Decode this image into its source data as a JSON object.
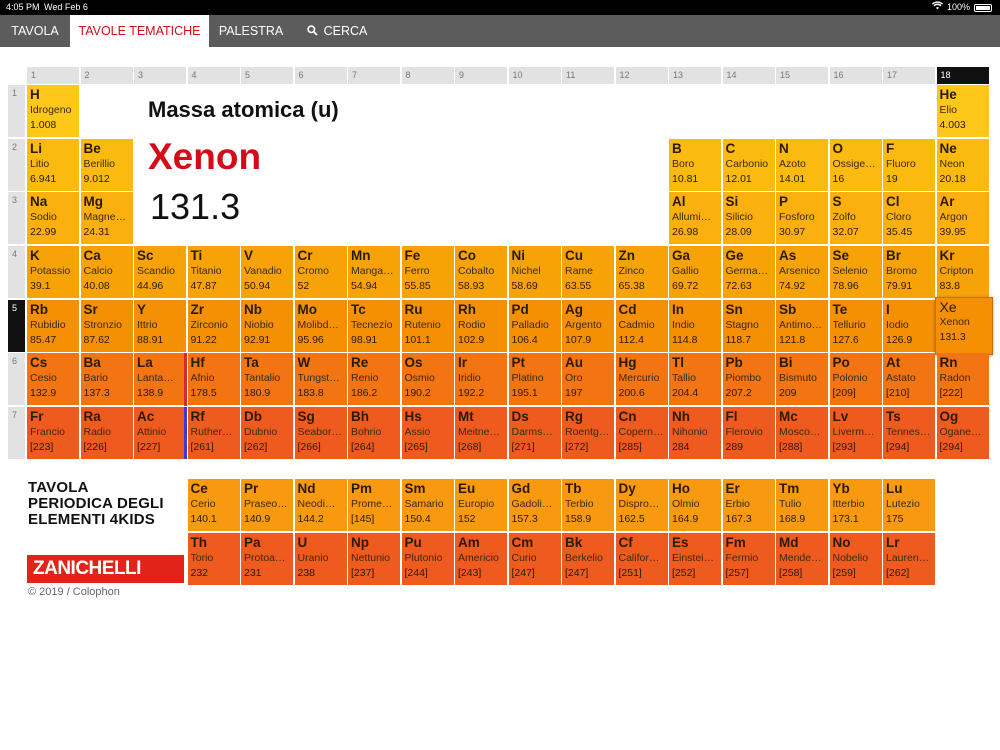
{
  "status_bar": {
    "time": "4:05 PM",
    "date": "Wed Feb 6",
    "battery": "100%"
  },
  "nav": {
    "tabs": [
      {
        "label": "TAVOLA",
        "active": false
      },
      {
        "label": "TAVOLE TEMATICHE",
        "active": true
      },
      {
        "label": "PALESTRA",
        "active": false
      },
      {
        "label": "CERCA",
        "active": false
      }
    ]
  },
  "panel": {
    "label": "Massa atomica (u)",
    "name": "Xenon",
    "value": "131.3"
  },
  "columns": [
    "1",
    "2",
    "3",
    "4",
    "5",
    "6",
    "7",
    "8",
    "9",
    "10",
    "11",
    "12",
    "13",
    "14",
    "15",
    "16",
    "17",
    "18"
  ],
  "selected_column": "18",
  "periods": [
    "1",
    "2",
    "3",
    "4",
    "5",
    "6",
    "7"
  ],
  "selected_period": "5",
  "selected_element": "Xe",
  "elements": [
    {
      "s": "H",
      "n": "Idrogeno",
      "m": "1.008",
      "r": 1,
      "c": 1
    },
    {
      "s": "He",
      "n": "Elio",
      "m": "4.003",
      "r": 1,
      "c": 18
    },
    {
      "s": "Li",
      "n": "Litio",
      "m": "6.941",
      "r": 2,
      "c": 1
    },
    {
      "s": "Be",
      "n": "Berillio",
      "m": "9.012",
      "r": 2,
      "c": 2
    },
    {
      "s": "B",
      "n": "Boro",
      "m": "10.81",
      "r": 2,
      "c": 13
    },
    {
      "s": "C",
      "n": "Carbonio",
      "m": "12.01",
      "r": 2,
      "c": 14
    },
    {
      "s": "N",
      "n": "Azoto",
      "m": "14.01",
      "r": 2,
      "c": 15
    },
    {
      "s": "O",
      "n": "Ossige…",
      "m": "16",
      "r": 2,
      "c": 16
    },
    {
      "s": "F",
      "n": "Fluoro",
      "m": "19",
      "r": 2,
      "c": 17
    },
    {
      "s": "Ne",
      "n": "Neon",
      "m": "20.18",
      "r": 2,
      "c": 18
    },
    {
      "s": "Na",
      "n": "Sodio",
      "m": "22.99",
      "r": 3,
      "c": 1
    },
    {
      "s": "Mg",
      "n": "Magne…",
      "m": "24.31",
      "r": 3,
      "c": 2
    },
    {
      "s": "Al",
      "n": "Allumi…",
      "m": "26.98",
      "r": 3,
      "c": 13
    },
    {
      "s": "Si",
      "n": "Silicio",
      "m": "28.09",
      "r": 3,
      "c": 14
    },
    {
      "s": "P",
      "n": "Fosforo",
      "m": "30.97",
      "r": 3,
      "c": 15
    },
    {
      "s": "S",
      "n": "Zolfo",
      "m": "32.07",
      "r": 3,
      "c": 16
    },
    {
      "s": "Cl",
      "n": "Cloro",
      "m": "35.45",
      "r": 3,
      "c": 17
    },
    {
      "s": "Ar",
      "n": "Argon",
      "m": "39.95",
      "r": 3,
      "c": 18
    },
    {
      "s": "K",
      "n": "Potassio",
      "m": "39.1",
      "r": 4,
      "c": 1
    },
    {
      "s": "Ca",
      "n": "Calcio",
      "m": "40.08",
      "r": 4,
      "c": 2
    },
    {
      "s": "Sc",
      "n": "Scandio",
      "m": "44.96",
      "r": 4,
      "c": 3
    },
    {
      "s": "Ti",
      "n": "Titanio",
      "m": "47.87",
      "r": 4,
      "c": 4
    },
    {
      "s": "V",
      "n": "Vanadio",
      "m": "50.94",
      "r": 4,
      "c": 5
    },
    {
      "s": "Cr",
      "n": "Cromo",
      "m": "52",
      "r": 4,
      "c": 6
    },
    {
      "s": "Mn",
      "n": "Manga…",
      "m": "54.94",
      "r": 4,
      "c": 7
    },
    {
      "s": "Fe",
      "n": "Ferro",
      "m": "55.85",
      "r": 4,
      "c": 8
    },
    {
      "s": "Co",
      "n": "Cobalto",
      "m": "58.93",
      "r": 4,
      "c": 9
    },
    {
      "s": "Ni",
      "n": "Nichel",
      "m": "58.69",
      "r": 4,
      "c": 10
    },
    {
      "s": "Cu",
      "n": "Rame",
      "m": "63.55",
      "r": 4,
      "c": 11
    },
    {
      "s": "Zn",
      "n": "Zinco",
      "m": "65.38",
      "r": 4,
      "c": 12
    },
    {
      "s": "Ga",
      "n": "Gallio",
      "m": "69.72",
      "r": 4,
      "c": 13
    },
    {
      "s": "Ge",
      "n": "Germa…",
      "m": "72.63",
      "r": 4,
      "c": 14
    },
    {
      "s": "As",
      "n": "Arsenico",
      "m": "74.92",
      "r": 4,
      "c": 15
    },
    {
      "s": "Se",
      "n": "Selenio",
      "m": "78.96",
      "r": 4,
      "c": 16
    },
    {
      "s": "Br",
      "n": "Bromo",
      "m": "79.91",
      "r": 4,
      "c": 17
    },
    {
      "s": "Kr",
      "n": "Cripton",
      "m": "83.8",
      "r": 4,
      "c": 18
    },
    {
      "s": "Rb",
      "n": "Rubidio",
      "m": "85.47",
      "r": 5,
      "c": 1
    },
    {
      "s": "Sr",
      "n": "Stronzio",
      "m": "87.62",
      "r": 5,
      "c": 2
    },
    {
      "s": "Y",
      "n": "Ittrio",
      "m": "88.91",
      "r": 5,
      "c": 3
    },
    {
      "s": "Zr",
      "n": "Zirconio",
      "m": "91.22",
      "r": 5,
      "c": 4
    },
    {
      "s": "Nb",
      "n": "Niobio",
      "m": "92.91",
      "r": 5,
      "c": 5
    },
    {
      "s": "Mo",
      "n": "Molibd…",
      "m": "95.96",
      "r": 5,
      "c": 6
    },
    {
      "s": "Tc",
      "n": "Tecnezio",
      "m": "98.91",
      "r": 5,
      "c": 7
    },
    {
      "s": "Ru",
      "n": "Rutenio",
      "m": "101.1",
      "r": 5,
      "c": 8
    },
    {
      "s": "Rh",
      "n": "Rodio",
      "m": "102.9",
      "r": 5,
      "c": 9
    },
    {
      "s": "Pd",
      "n": "Palladio",
      "m": "106.4",
      "r": 5,
      "c": 10
    },
    {
      "s": "Ag",
      "n": "Argento",
      "m": "107.9",
      "r": 5,
      "c": 11
    },
    {
      "s": "Cd",
      "n": "Cadmio",
      "m": "112.4",
      "r": 5,
      "c": 12
    },
    {
      "s": "In",
      "n": "Indio",
      "m": "114.8",
      "r": 5,
      "c": 13
    },
    {
      "s": "Sn",
      "n": "Stagno",
      "m": "118.7",
      "r": 5,
      "c": 14
    },
    {
      "s": "Sb",
      "n": "Antimo…",
      "m": "121.8",
      "r": 5,
      "c": 15
    },
    {
      "s": "Te",
      "n": "Tellurio",
      "m": "127.6",
      "r": 5,
      "c": 16
    },
    {
      "s": "I",
      "n": "Iodio",
      "m": "126.9",
      "r": 5,
      "c": 17
    },
    {
      "s": "Xe",
      "n": "Xenon",
      "m": "131.3",
      "r": 5,
      "c": 18
    },
    {
      "s": "Cs",
      "n": "Cesio",
      "m": "132.9",
      "r": 6,
      "c": 1
    },
    {
      "s": "Ba",
      "n": "Bario",
      "m": "137.3",
      "r": 6,
      "c": 2
    },
    {
      "s": "La",
      "n": "Lanta…",
      "m": "138.9",
      "r": 6,
      "c": 3
    },
    {
      "s": "Hf",
      "n": "Afnio",
      "m": "178.5",
      "r": 6,
      "c": 4
    },
    {
      "s": "Ta",
      "n": "Tantalio",
      "m": "180.9",
      "r": 6,
      "c": 5
    },
    {
      "s": "W",
      "n": "Tungst…",
      "m": "183.8",
      "r": 6,
      "c": 6
    },
    {
      "s": "Re",
      "n": "Renio",
      "m": "186.2",
      "r": 6,
      "c": 7
    },
    {
      "s": "Os",
      "n": "Osmio",
      "m": "190.2",
      "r": 6,
      "c": 8
    },
    {
      "s": "Ir",
      "n": "Iridio",
      "m": "192.2",
      "r": 6,
      "c": 9
    },
    {
      "s": "Pt",
      "n": "Platino",
      "m": "195.1",
      "r": 6,
      "c": 10
    },
    {
      "s": "Au",
      "n": "Oro",
      "m": "197",
      "r": 6,
      "c": 11
    },
    {
      "s": "Hg",
      "n": "Mercurio",
      "m": "200.6",
      "r": 6,
      "c": 12
    },
    {
      "s": "Tl",
      "n": "Tallio",
      "m": "204.4",
      "r": 6,
      "c": 13
    },
    {
      "s": "Pb",
      "n": "Piombo",
      "m": "207.2",
      "r": 6,
      "c": 14
    },
    {
      "s": "Bi",
      "n": "Bismuto",
      "m": "209",
      "r": 6,
      "c": 15
    },
    {
      "s": "Po",
      "n": "Polonio",
      "m": "[209]",
      "r": 6,
      "c": 16
    },
    {
      "s": "At",
      "n": "Astato",
      "m": "[210]",
      "r": 6,
      "c": 17
    },
    {
      "s": "Rn",
      "n": "Radon",
      "m": "[222]",
      "r": 6,
      "c": 18
    },
    {
      "s": "Fr",
      "n": "Francio",
      "m": "[223]",
      "r": 7,
      "c": 1
    },
    {
      "s": "Ra",
      "n": "Radio",
      "m": "[226]",
      "r": 7,
      "c": 2
    },
    {
      "s": "Ac",
      "n": "Attinio",
      "m": "[227]",
      "r": 7,
      "c": 3
    },
    {
      "s": "Rf",
      "n": "Ruther…",
      "m": "[261]",
      "r": 7,
      "c": 4
    },
    {
      "s": "Db",
      "n": "Dubnio",
      "m": "[262]",
      "r": 7,
      "c": 5
    },
    {
      "s": "Sg",
      "n": "Seabor…",
      "m": "[266]",
      "r": 7,
      "c": 6
    },
    {
      "s": "Bh",
      "n": "Bohrio",
      "m": "[264]",
      "r": 7,
      "c": 7
    },
    {
      "s": "Hs",
      "n": "Assio",
      "m": "[265]",
      "r": 7,
      "c": 8
    },
    {
      "s": "Mt",
      "n": "Meitne…",
      "m": "[268]",
      "r": 7,
      "c": 9
    },
    {
      "s": "Ds",
      "n": "Darms…",
      "m": "[271]",
      "r": 7,
      "c": 10
    },
    {
      "s": "Rg",
      "n": "Roentg…",
      "m": "[272]",
      "r": 7,
      "c": 11
    },
    {
      "s": "Cn",
      "n": "Copern…",
      "m": "[285]",
      "r": 7,
      "c": 12
    },
    {
      "s": "Nh",
      "n": "Nihonio",
      "m": "284",
      "r": 7,
      "c": 13
    },
    {
      "s": "Fl",
      "n": "Flerovio",
      "m": "289",
      "r": 7,
      "c": 14
    },
    {
      "s": "Mc",
      "n": "Mosco…",
      "m": "[288]",
      "r": 7,
      "c": 15
    },
    {
      "s": "Lv",
      "n": "Liverm…",
      "m": "[293]",
      "r": 7,
      "c": 16
    },
    {
      "s": "Ts",
      "n": "Tennes…",
      "m": "[294]",
      "r": 7,
      "c": 17
    },
    {
      "s": "Og",
      "n": "Ogane…",
      "m": "[294]",
      "r": 7,
      "c": 18
    },
    {
      "s": "Ce",
      "n": "Cerio",
      "m": "140.1",
      "r": 9,
      "c": 4
    },
    {
      "s": "Pr",
      "n": "Praseo…",
      "m": "140.9",
      "r": 9,
      "c": 5
    },
    {
      "s": "Nd",
      "n": "Neodi…",
      "m": "144.2",
      "r": 9,
      "c": 6
    },
    {
      "s": "Pm",
      "n": "Prome…",
      "m": "[145]",
      "r": 9,
      "c": 7
    },
    {
      "s": "Sm",
      "n": "Samario",
      "m": "150.4",
      "r": 9,
      "c": 8
    },
    {
      "s": "Eu",
      "n": "Europio",
      "m": "152",
      "r": 9,
      "c": 9
    },
    {
      "s": "Gd",
      "n": "Gadoli…",
      "m": "157.3",
      "r": 9,
      "c": 10
    },
    {
      "s": "Tb",
      "n": "Terbio",
      "m": "158.9",
      "r": 9,
      "c": 11
    },
    {
      "s": "Dy",
      "n": "Dispro…",
      "m": "162.5",
      "r": 9,
      "c": 12
    },
    {
      "s": "Ho",
      "n": "Olmio",
      "m": "164.9",
      "r": 9,
      "c": 13
    },
    {
      "s": "Er",
      "n": "Erbio",
      "m": "167.3",
      "r": 9,
      "c": 14
    },
    {
      "s": "Tm",
      "n": "Tulio",
      "m": "168.9",
      "r": 9,
      "c": 15
    },
    {
      "s": "Yb",
      "n": "Itterbio",
      "m": "173.1",
      "r": 9,
      "c": 16
    },
    {
      "s": "Lu",
      "n": "Lutezio",
      "m": "175",
      "r": 9,
      "c": 17
    },
    {
      "s": "Th",
      "n": "Torio",
      "m": "232",
      "r": 10,
      "c": 4
    },
    {
      "s": "Pa",
      "n": "Protoa…",
      "m": "231",
      "r": 10,
      "c": 5
    },
    {
      "s": "U",
      "n": "Uranio",
      "m": "238",
      "r": 10,
      "c": 6
    },
    {
      "s": "Np",
      "n": "Nettunio",
      "m": "[237]",
      "r": 10,
      "c": 7
    },
    {
      "s": "Pu",
      "n": "Plutonio",
      "m": "[244]",
      "r": 10,
      "c": 8
    },
    {
      "s": "Am",
      "n": "Americio",
      "m": "[243]",
      "r": 10,
      "c": 9
    },
    {
      "s": "Cm",
      "n": "Curio",
      "m": "[247]",
      "r": 10,
      "c": 10
    },
    {
      "s": "Bk",
      "n": "Berkelio",
      "m": "[247]",
      "r": 10,
      "c": 11
    },
    {
      "s": "Cf",
      "n": "Califor…",
      "m": "[251]",
      "r": 10,
      "c": 12
    },
    {
      "s": "Es",
      "n": "Einstei…",
      "m": "[252]",
      "r": 10,
      "c": 13
    },
    {
      "s": "Fm",
      "n": "Fermio",
      "m": "[257]",
      "r": 10,
      "c": 14
    },
    {
      "s": "Md",
      "n": "Mende…",
      "m": "[258]",
      "r": 10,
      "c": 15
    },
    {
      "s": "No",
      "n": "Nobelio",
      "m": "[259]",
      "r": 10,
      "c": 16
    },
    {
      "s": "Lr",
      "n": "Lauren…",
      "m": "[262]",
      "r": 10,
      "c": 17
    }
  ],
  "colors": {
    "accent": "#d40c1a",
    "nav_bg": "#5c5c5c",
    "lanthanide_marker": "#d42a2a",
    "actinide_marker": "#3a3ad8"
  },
  "footer": {
    "title_lines": [
      "TAVOLA",
      "PERIODICA DEGLI",
      "ELEMENTI 4KIDS"
    ],
    "logo": "ZANICHELLI",
    "copyright": "© 2019 / Colophon"
  }
}
